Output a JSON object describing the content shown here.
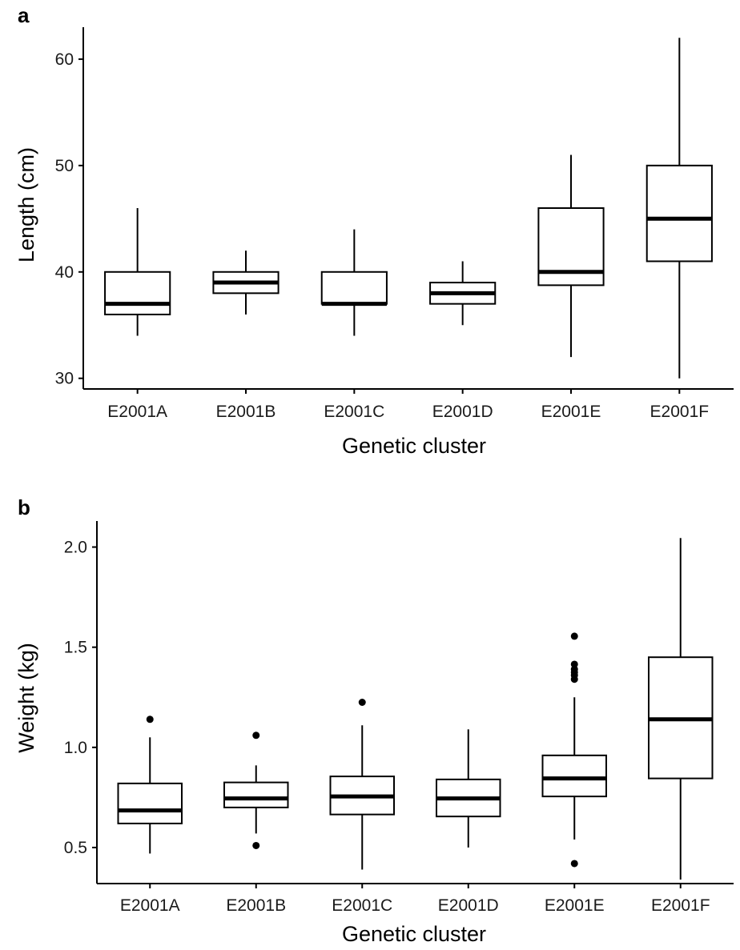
{
  "chart_data": [
    {
      "type": "box",
      "panel_label": "a",
      "xlabel": "Genetic cluster",
      "ylabel": "Length (cm)",
      "ylim": [
        29,
        63
      ],
      "yticks": [
        30,
        40,
        50,
        60
      ],
      "grid": false,
      "categories": [
        "E2001A",
        "E2001B",
        "E2001C",
        "E2001D",
        "E2001E",
        "E2001F"
      ],
      "boxes": [
        {
          "whisker_low": 34,
          "q1": 36,
          "median": 37,
          "q3": 40,
          "whisker_high": 46,
          "outliers": []
        },
        {
          "whisker_low": 36,
          "q1": 38,
          "median": 39,
          "q3": 40,
          "whisker_high": 42,
          "outliers": []
        },
        {
          "whisker_low": 34,
          "q1": 37,
          "median": 37,
          "q3": 40,
          "whisker_high": 44,
          "outliers": []
        },
        {
          "whisker_low": 35,
          "q1": 37,
          "median": 38,
          "q3": 39,
          "whisker_high": 41,
          "outliers": []
        },
        {
          "whisker_low": 32,
          "q1": 38.75,
          "median": 40,
          "q3": 46,
          "whisker_high": 51,
          "outliers": []
        },
        {
          "whisker_low": 30,
          "q1": 41,
          "median": 45,
          "q3": 50,
          "whisker_high": 62,
          "outliers": []
        }
      ]
    },
    {
      "type": "box",
      "panel_label": "b",
      "xlabel": "Genetic cluster",
      "ylabel": "Weight (kg)",
      "ylim": [
        0.32,
        2.13
      ],
      "yticks": [
        0.5,
        1.0,
        1.5,
        2.0
      ],
      "ytick_labels": [
        "0.5",
        "1.0",
        "1.5",
        "2.0"
      ],
      "grid": false,
      "categories": [
        "E2001A",
        "E2001B",
        "E2001C",
        "E2001D",
        "E2001E",
        "E2001F"
      ],
      "boxes": [
        {
          "whisker_low": 0.47,
          "q1": 0.62,
          "median": 0.685,
          "q3": 0.82,
          "whisker_high": 1.05,
          "outliers": [
            1.14
          ]
        },
        {
          "whisker_low": 0.57,
          "q1": 0.7,
          "median": 0.745,
          "q3": 0.825,
          "whisker_high": 0.91,
          "outliers": [
            0.51,
            1.06
          ]
        },
        {
          "whisker_low": 0.39,
          "q1": 0.665,
          "median": 0.755,
          "q3": 0.855,
          "whisker_high": 1.11,
          "outliers": [
            1.225
          ]
        },
        {
          "whisker_low": 0.5,
          "q1": 0.655,
          "median": 0.745,
          "q3": 0.84,
          "whisker_high": 1.09,
          "outliers": []
        },
        {
          "whisker_low": 0.54,
          "q1": 0.755,
          "median": 0.845,
          "q3": 0.96,
          "whisker_high": 1.25,
          "outliers": [
            0.42,
            1.34,
            1.36,
            1.375,
            1.39,
            1.415,
            1.555
          ]
        },
        {
          "whisker_low": 0.34,
          "q1": 0.845,
          "median": 1.14,
          "q3": 1.45,
          "whisker_high": 2.045,
          "outliers": []
        }
      ]
    }
  ]
}
